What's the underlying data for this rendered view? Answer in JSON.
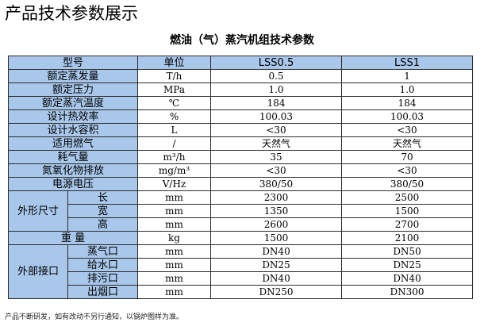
{
  "heading": "产品技术参数展示",
  "table_title": "燃油（气）蒸汽机组技术参数",
  "header": {
    "param": "型号",
    "unit": "单位",
    "model1": "LSS0.5",
    "model2": "LSS1"
  },
  "rows": [
    {
      "label": "额定蒸发量",
      "unit": "T/h",
      "v1": "0.5",
      "v2": "1"
    },
    {
      "label": "额定压力",
      "unit": "MPa",
      "v1": "1.0",
      "v2": "1.0"
    },
    {
      "label": "额定蒸汽温度",
      "unit": "℃",
      "v1": "184",
      "v2": "184"
    },
    {
      "label": "设计热效率",
      "unit": "%",
      "v1": "100.03",
      "v2": "100.03"
    },
    {
      "label": "设计水容积",
      "unit": "L",
      "v1": "<30",
      "v2": "<30"
    },
    {
      "label": "适用燃气",
      "unit": "/",
      "v1": "天然气",
      "v2": "天然气"
    },
    {
      "label": "耗气量",
      "unit": "m³/h",
      "v1": "35",
      "v2": "70"
    },
    {
      "label": "氮氧化物排放",
      "unit": "mg/m³",
      "v1": "<30",
      "v2": "<30"
    },
    {
      "label": "电源电压",
      "unit": "V/Hz",
      "v1": "380/50",
      "v2": "380/50"
    }
  ],
  "dims": {
    "group": "外形尺寸",
    "rows": [
      {
        "label": "长",
        "unit": "mm",
        "v1": "2300",
        "v2": "2500"
      },
      {
        "label": "宽",
        "unit": "mm",
        "v1": "1350",
        "v2": "1500"
      },
      {
        "label": "高",
        "unit": "mm",
        "v1": "2600",
        "v2": "2700"
      }
    ]
  },
  "weight": {
    "label": "重 量",
    "unit": "kg",
    "v1": "1500",
    "v2": "2100"
  },
  "ports": {
    "group": "外部接口",
    "rows": [
      {
        "label": "蒸气口",
        "unit": "mm",
        "v1": "DN40",
        "v2": "DN50"
      },
      {
        "label": "给水口",
        "unit": "mm",
        "v1": "DN25",
        "v2": "DN25"
      },
      {
        "label": "排污口",
        "unit": "mm",
        "v1": "DN40",
        "v2": "DN40"
      },
      {
        "label": "出烟口",
        "unit": "mm",
        "v1": "DN250",
        "v2": "DN300"
      }
    ]
  },
  "footnote": "产品不断研发，如有改动不另行通知，以锅炉图样为准。"
}
